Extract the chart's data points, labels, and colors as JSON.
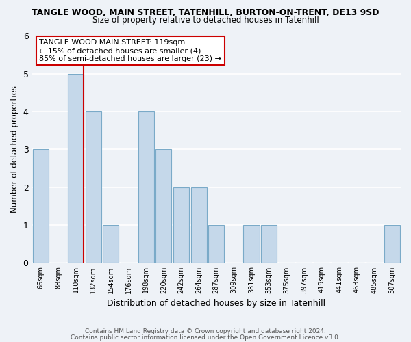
{
  "title": "TANGLE WOOD, MAIN STREET, TATENHILL, BURTON-ON-TRENT, DE13 9SD",
  "subtitle": "Size of property relative to detached houses in Tatenhill",
  "xlabel": "Distribution of detached houses by size in Tatenhill",
  "ylabel": "Number of detached properties",
  "bar_labels": [
    "66sqm",
    "88sqm",
    "110sqm",
    "132sqm",
    "154sqm",
    "176sqm",
    "198sqm",
    "220sqm",
    "242sqm",
    "264sqm",
    "287sqm",
    "309sqm",
    "331sqm",
    "353sqm",
    "375sqm",
    "397sqm",
    "419sqm",
    "441sqm",
    "463sqm",
    "485sqm",
    "507sqm"
  ],
  "bar_values": [
    3,
    0,
    5,
    4,
    1,
    0,
    4,
    3,
    2,
    2,
    1,
    0,
    1,
    1,
    0,
    0,
    0,
    0,
    0,
    0,
    1
  ],
  "bar_color": "#c5d8ea",
  "bar_edge_color": "#7aaac8",
  "red_line_bar_index": 2,
  "annotation_title": "TANGLE WOOD MAIN STREET: 119sqm",
  "annotation_line1": "← 15% of detached houses are smaller (4)",
  "annotation_line2": "85% of semi-detached houses are larger (23) →",
  "ylim": [
    0,
    6
  ],
  "yticks": [
    0,
    1,
    2,
    3,
    4,
    5,
    6
  ],
  "footnote1": "Contains HM Land Registry data © Crown copyright and database right 2024.",
  "footnote2": "Contains public sector information licensed under the Open Government Licence v3.0.",
  "background_color": "#eef2f7",
  "grid_color": "#ffffff",
  "red_line_color": "#cc0000",
  "ann_box_edge_color": "#cc0000"
}
